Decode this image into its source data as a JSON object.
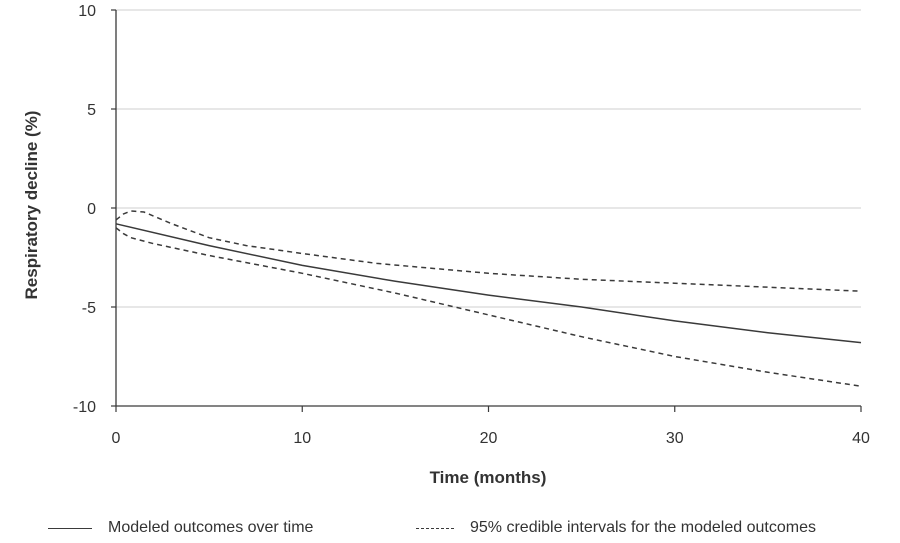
{
  "chart_data": {
    "type": "line",
    "title": "",
    "xlabel": "Time (months)",
    "ylabel": "Respiratory decline (%)",
    "xlim": [
      0,
      40
    ],
    "ylim": [
      -10,
      10
    ],
    "x_ticks": [
      0,
      10,
      20,
      30,
      40
    ],
    "y_ticks": [
      10,
      5,
      0,
      -5,
      -10
    ],
    "grid": "horizontal",
    "legend_position": "bottom",
    "colors": {
      "line": "#3a3a3a",
      "grid": "#cfcfcf",
      "axis": "#3a3a3a"
    },
    "series": [
      {
        "name": "Modeled outcomes over time",
        "style": "solid",
        "x": [
          0,
          5,
          10,
          15,
          20,
          25,
          30,
          35,
          40
        ],
        "y": [
          -0.8,
          -1.9,
          -2.9,
          -3.7,
          -4.4,
          -5.0,
          -5.7,
          -6.3,
          -6.8
        ]
      },
      {
        "name": "95% credible intervals for the modeled outcomes",
        "style": "dashed",
        "x": [
          0,
          0.4,
          0.8,
          1.5,
          3,
          5,
          7,
          10,
          14,
          20,
          25,
          30,
          35,
          40
        ],
        "y": [
          -0.6,
          -0.3,
          -0.15,
          -0.2,
          -0.8,
          -1.5,
          -1.9,
          -2.3,
          -2.8,
          -3.3,
          -3.6,
          -3.8,
          -4.0,
          -4.2
        ]
      },
      {
        "name": "95% credible intervals for the modeled outcomes",
        "style": "dashed",
        "x": [
          0,
          0.4,
          0.8,
          2,
          5,
          10,
          15,
          20,
          25,
          30,
          35,
          40
        ],
        "y": [
          -1.0,
          -1.3,
          -1.5,
          -1.8,
          -2.4,
          -3.3,
          -4.3,
          -5.4,
          -6.5,
          -7.5,
          -8.3,
          -9.0
        ]
      }
    ]
  }
}
